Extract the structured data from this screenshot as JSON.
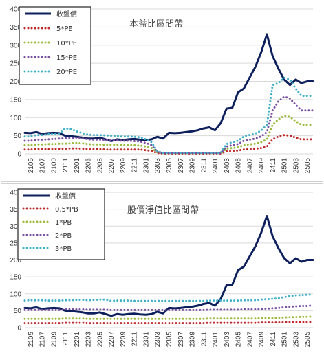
{
  "chart_data": [
    {
      "type": "line",
      "title": "本益比區間帶",
      "xlabel": "",
      "ylabel": "",
      "ylim": [
        0,
        400
      ],
      "yticks": [
        0,
        50,
        100,
        150,
        200,
        250,
        300,
        350,
        400
      ],
      "grid": true,
      "legend_position": "top-left",
      "x": [
        "2104",
        "2105",
        "2106",
        "2107",
        "2108",
        "2109",
        "2110",
        "2111",
        "2112",
        "2201",
        "2202",
        "2203",
        "2204",
        "2205",
        "2206",
        "2207",
        "2208",
        "2209",
        "2210",
        "2211",
        "2212",
        "2301",
        "2302",
        "2303",
        "2304",
        "2305",
        "2306",
        "2307",
        "2308",
        "2309",
        "2310",
        "2311",
        "2312",
        "2401",
        "2402",
        "2403",
        "2404",
        "2405",
        "2406",
        "2407",
        "2408",
        "2409",
        "2410",
        "2411",
        "2412",
        "2501",
        "2502",
        "2503",
        "2504",
        "2505",
        "2506"
      ],
      "x_tick_labels": [
        "2105",
        "2107",
        "2109",
        "2111",
        "2201",
        "2203",
        "2205",
        "2207",
        "2209",
        "2211",
        "2301",
        "2303",
        "2305",
        "2307",
        "2309",
        "2311",
        "2401",
        "2403",
        "2405",
        "2407",
        "2409",
        "2411",
        "2501",
        "2503",
        "2505"
      ],
      "series": [
        {
          "name": "收盤價",
          "color": "#0d1f5c",
          "style": "solid",
          "values": [
            58,
            57,
            60,
            55,
            57,
            58,
            57,
            50,
            49,
            47,
            45,
            42,
            42,
            45,
            40,
            35,
            40,
            38,
            40,
            41,
            39,
            38,
            40,
            47,
            42,
            58,
            57,
            58,
            60,
            62,
            65,
            70,
            73,
            65,
            85,
            125,
            127,
            170,
            180,
            210,
            240,
            280,
            330,
            270,
            235,
            205,
            190,
            205,
            195,
            200,
            200
          ]
        },
        {
          "name": "5*PE",
          "color": "#c0282a",
          "style": "dotted",
          "values": [
            12,
            12,
            13,
            13,
            13,
            13,
            14,
            14,
            15,
            15,
            14,
            13,
            13,
            13,
            12,
            12,
            12,
            12,
            12,
            12,
            12,
            10,
            8,
            2,
            1,
            1,
            1,
            1,
            1,
            1,
            1,
            1,
            1,
            1,
            1,
            7,
            8,
            9,
            12,
            13,
            14,
            16,
            20,
            40,
            48,
            52,
            50,
            45,
            40,
            40,
            40
          ]
        },
        {
          "name": "10*PE",
          "color": "#9abb3c",
          "style": "dotted",
          "values": [
            24,
            24,
            26,
            26,
            27,
            27,
            28,
            28,
            29,
            30,
            29,
            27,
            26,
            26,
            25,
            25,
            25,
            24,
            24,
            24,
            23,
            20,
            16,
            4,
            2,
            2,
            2,
            2,
            2,
            2,
            2,
            2,
            2,
            2,
            2,
            14,
            16,
            18,
            24,
            26,
            28,
            32,
            40,
            80,
            95,
            105,
            102,
            90,
            80,
            80,
            80
          ]
        },
        {
          "name": "15*PE",
          "color": "#7a4ea0",
          "style": "dotted",
          "values": [
            36,
            36,
            39,
            39,
            40,
            41,
            42,
            43,
            44,
            45,
            43,
            40,
            39,
            39,
            38,
            38,
            37,
            36,
            36,
            35,
            34,
            30,
            24,
            5,
            2,
            2,
            2,
            2,
            2,
            2,
            2,
            2,
            2,
            2,
            2,
            20,
            24,
            27,
            36,
            39,
            42,
            48,
            60,
            120,
            145,
            158,
            153,
            135,
            120,
            120,
            120
          ]
        },
        {
          "name": "20*PE",
          "color": "#3fb0c8",
          "style": "dotted",
          "values": [
            48,
            48,
            52,
            52,
            54,
            55,
            56,
            70,
            68,
            62,
            57,
            53,
            52,
            52,
            51,
            50,
            49,
            48,
            48,
            47,
            46,
            40,
            32,
            7,
            3,
            3,
            3,
            3,
            3,
            3,
            3,
            3,
            3,
            3,
            3,
            27,
            32,
            36,
            48,
            52,
            56,
            64,
            80,
            190,
            195,
            210,
            205,
            180,
            160,
            160,
            160
          ]
        }
      ]
    },
    {
      "type": "line",
      "title": "股價淨值比區間帶",
      "xlabel": "",
      "ylabel": "",
      "ylim": [
        0,
        400
      ],
      "yticks": [
        0,
        50,
        100,
        150,
        200,
        250,
        300,
        350,
        400
      ],
      "grid": true,
      "legend_position": "top-left",
      "x": [
        "2104",
        "2105",
        "2106",
        "2107",
        "2108",
        "2109",
        "2110",
        "2111",
        "2112",
        "2201",
        "2202",
        "2203",
        "2204",
        "2205",
        "2206",
        "2207",
        "2208",
        "2209",
        "2210",
        "2211",
        "2212",
        "2301",
        "2302",
        "2303",
        "2304",
        "2305",
        "2306",
        "2307",
        "2308",
        "2309",
        "2310",
        "2311",
        "2312",
        "2401",
        "2402",
        "2403",
        "2404",
        "2405",
        "2406",
        "2407",
        "2408",
        "2409",
        "2410",
        "2411",
        "2412",
        "2501",
        "2502",
        "2503",
        "2504",
        "2505",
        "2506"
      ],
      "x_tick_labels": [
        "2105",
        "2107",
        "2109",
        "2111",
        "2201",
        "2203",
        "2205",
        "2207",
        "2209",
        "2211",
        "2301",
        "2303",
        "2305",
        "2307",
        "2309",
        "2311",
        "2401",
        "2403",
        "2405",
        "2407",
        "2409",
        "2411",
        "2501",
        "2503",
        "2505"
      ],
      "series": [
        {
          "name": "收盤價",
          "color": "#0d1f5c",
          "style": "solid",
          "values": [
            58,
            57,
            60,
            55,
            57,
            58,
            57,
            50,
            49,
            47,
            45,
            42,
            42,
            45,
            40,
            35,
            40,
            38,
            40,
            41,
            39,
            38,
            40,
            47,
            42,
            58,
            57,
            58,
            60,
            62,
            65,
            70,
            73,
            65,
            85,
            125,
            127,
            170,
            180,
            210,
            240,
            280,
            330,
            270,
            235,
            205,
            190,
            205,
            195,
            200,
            200
          ]
        },
        {
          "name": "0.5*PB",
          "color": "#c0282a",
          "style": "dotted",
          "values": [
            13,
            13,
            13,
            13,
            13,
            13,
            13,
            14,
            14,
            14,
            14,
            13,
            13,
            13,
            13,
            13,
            13,
            13,
            13,
            13,
            13,
            13,
            13,
            13,
            13,
            13,
            13,
            13,
            13,
            13,
            13,
            13,
            14,
            14,
            14,
            14,
            14,
            14,
            14,
            14,
            14,
            15,
            15,
            15,
            15,
            16,
            16,
            16,
            16,
            16,
            17
          ]
        },
        {
          "name": "1*PB",
          "color": "#9abb3c",
          "style": "dotted",
          "values": [
            26,
            26,
            26,
            26,
            26,
            26,
            26,
            27,
            27,
            27,
            27,
            26,
            26,
            26,
            26,
            26,
            26,
            26,
            26,
            26,
            26,
            26,
            26,
            26,
            26,
            26,
            26,
            26,
            26,
            26,
            26,
            26,
            27,
            27,
            27,
            27,
            27,
            27,
            27,
            27,
            27,
            28,
            28,
            28,
            29,
            30,
            31,
            31,
            32,
            32,
            33
          ]
        },
        {
          "name": "2*PB",
          "color": "#7a4ea0",
          "style": "dotted",
          "values": [
            52,
            52,
            52,
            52,
            52,
            52,
            52,
            54,
            54,
            54,
            54,
            53,
            53,
            53,
            53,
            52,
            52,
            52,
            52,
            52,
            52,
            52,
            52,
            52,
            52,
            52,
            52,
            52,
            52,
            52,
            52,
            52,
            53,
            53,
            53,
            53,
            53,
            53,
            54,
            54,
            54,
            55,
            56,
            57,
            58,
            60,
            62,
            63,
            64,
            64,
            66
          ]
        },
        {
          "name": "3*PB",
          "color": "#3fb0c8",
          "style": "dotted",
          "values": [
            80,
            81,
            81,
            81,
            80,
            80,
            80,
            81,
            81,
            82,
            82,
            81,
            82,
            83,
            83,
            79,
            80,
            80,
            80,
            79,
            79,
            79,
            79,
            79,
            79,
            79,
            79,
            79,
            79,
            79,
            79,
            79,
            80,
            80,
            80,
            80,
            80,
            80,
            81,
            81,
            81,
            83,
            84,
            85,
            87,
            90,
            93,
            95,
            96,
            97,
            98
          ]
        }
      ]
    }
  ]
}
